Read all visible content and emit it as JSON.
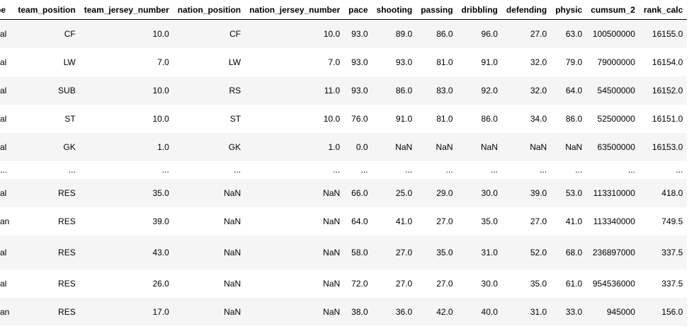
{
  "table": {
    "columns": [
      "pe",
      "team_position",
      "team_jersey_number",
      "nation_position",
      "nation_jersey_number",
      "pace",
      "shooting",
      "passing",
      "dribbling",
      "defending",
      "physic",
      "cumsum_2",
      "rank_calc"
    ],
    "rows": [
      [
        "al",
        "CF",
        "10.0",
        "CF",
        "10.0",
        "93.0",
        "89.0",
        "86.0",
        "96.0",
        "27.0",
        "63.0",
        "100500000",
        "16155.0"
      ],
      [
        "al",
        "LW",
        "7.0",
        "LW",
        "7.0",
        "93.0",
        "93.0",
        "81.0",
        "91.0",
        "32.0",
        "79.0",
        "79000000",
        "16154.0"
      ],
      [
        "al",
        "SUB",
        "10.0",
        "RS",
        "11.0",
        "93.0",
        "86.0",
        "83.0",
        "92.0",
        "32.0",
        "64.0",
        "54500000",
        "16152.0"
      ],
      [
        "al",
        "ST",
        "10.0",
        "ST",
        "10.0",
        "76.0",
        "91.0",
        "81.0",
        "86.0",
        "34.0",
        "86.0",
        "52500000",
        "16151.0"
      ],
      [
        "al",
        "GK",
        "1.0",
        "GK",
        "1.0",
        "0.0",
        "NaN",
        "NaN",
        "NaN",
        "NaN",
        "NaN",
        "63500000",
        "16153.0"
      ],
      [
        "...",
        "...",
        "...",
        "...",
        "...",
        "...",
        "...",
        "...",
        "...",
        "...",
        "...",
        "...",
        "..."
      ],
      [
        "al",
        "RES",
        "35.0",
        "NaN",
        "NaN",
        "66.0",
        "25.0",
        "29.0",
        "30.0",
        "39.0",
        "53.0",
        "113310000",
        "418.0"
      ],
      [
        "an",
        "RES",
        "39.0",
        "NaN",
        "NaN",
        "64.0",
        "41.0",
        "27.0",
        "35.0",
        "27.0",
        "41.0",
        "113340000",
        "749.5"
      ],
      [
        "al",
        "RES",
        "43.0",
        "NaN",
        "NaN",
        "58.0",
        "27.0",
        "35.0",
        "31.0",
        "52.0",
        "68.0",
        "236897000",
        "337.5"
      ],
      [
        "al",
        "RES",
        "26.0",
        "NaN",
        "NaN",
        "72.0",
        "27.0",
        "27.0",
        "30.0",
        "35.0",
        "61.0",
        "954536000",
        "337.5"
      ],
      [
        "an",
        "RES",
        "17.0",
        "NaN",
        "NaN",
        "38.0",
        "36.0",
        "42.0",
        "40.0",
        "31.0",
        "33.0",
        "945000",
        "156.0"
      ]
    ]
  }
}
